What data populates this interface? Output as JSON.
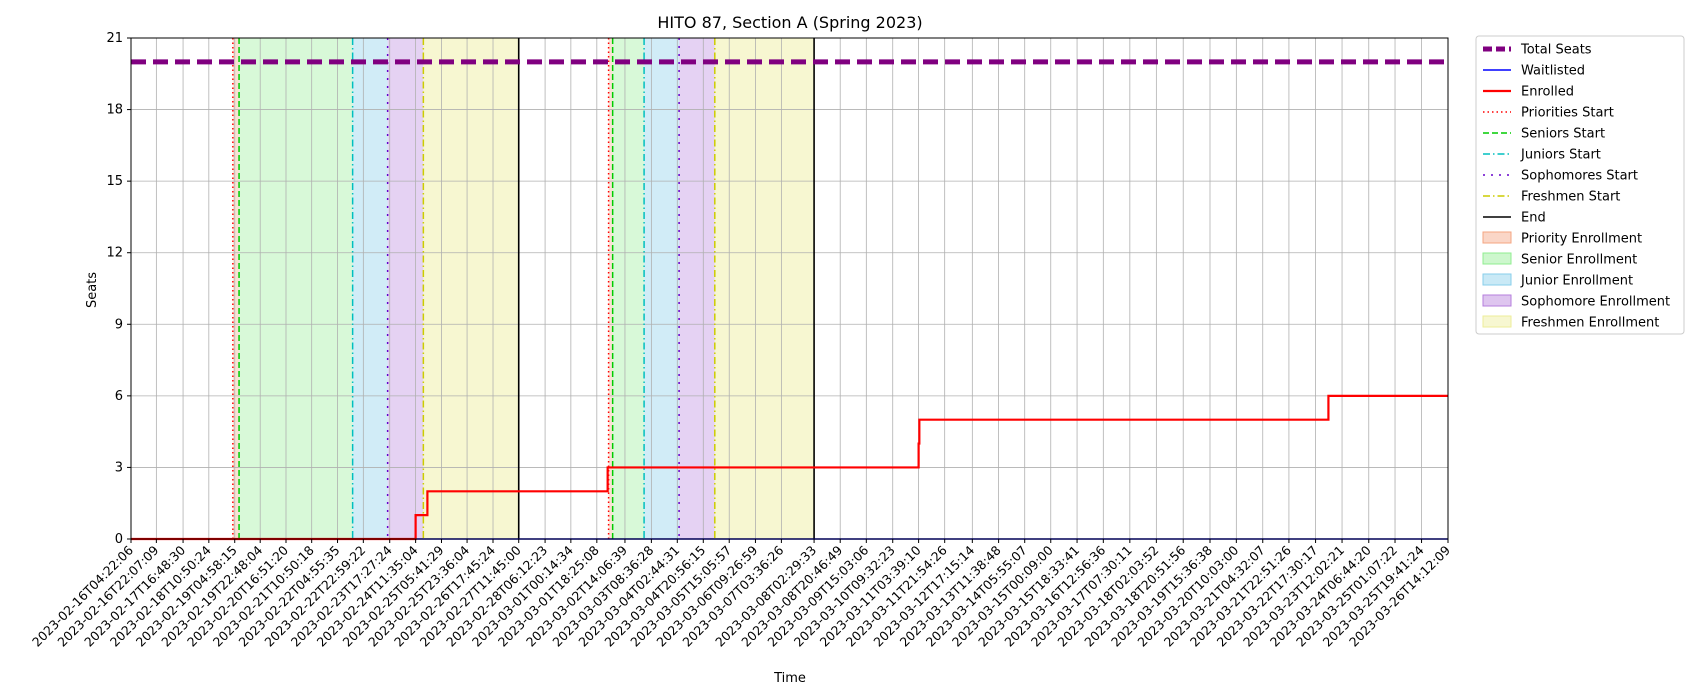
{
  "chart_data": {
    "type": "line",
    "title": "HITO 87, Section A (Spring 2023)",
    "xlabel": "Time",
    "ylabel": "Seats",
    "ylim": [
      0,
      21
    ],
    "yticks": [
      0,
      3,
      6,
      9,
      12,
      15,
      18,
      21
    ],
    "xlim": [
      "2023-02-16T04:22:06",
      "2023-03-26T14:12:09"
    ],
    "xticks": [
      "2023-02-16T04:22:06",
      "2023-02-16T22:07:09",
      "2023-02-17T16:48:30",
      "2023-02-18T10:50:24",
      "2023-02-19T04:58:15",
      "2023-02-19T22:48:04",
      "2023-02-20T16:51:20",
      "2023-02-21T10:50:18",
      "2023-02-22T04:55:35",
      "2023-02-22T22:59:22",
      "2023-02-23T17:27:24",
      "2023-02-24T11:35:04",
      "2023-02-25T05:41:29",
      "2023-02-25T23:36:04",
      "2023-02-26T17:45:24",
      "2023-02-27T11:45:00",
      "2023-02-28T06:12:23",
      "2023-03-01T00:14:34",
      "2023-03-01T18:25:08",
      "2023-03-02T14:06:39",
      "2023-03-03T08:36:28",
      "2023-03-04T02:44:31",
      "2023-03-04T20:56:15",
      "2023-03-05T15:05:57",
      "2023-03-06T09:26:59",
      "2023-03-07T03:36:26",
      "2023-03-08T02:29:33",
      "2023-03-08T20:46:49",
      "2023-03-09T15:03:06",
      "2023-03-10T09:32:23",
      "2023-03-11T03:39:10",
      "2023-03-11T21:54:26",
      "2023-03-12T17:15:14",
      "2023-03-13T11:38:48",
      "2023-03-14T05:55:07",
      "2023-03-15T00:09:00",
      "2023-03-15T18:33:41",
      "2023-03-16T12:56:36",
      "2023-03-17T07:30:11",
      "2023-03-18T02:03:52",
      "2023-03-18T20:51:56",
      "2023-03-19T15:36:38",
      "2023-03-20T10:03:00",
      "2023-03-21T04:32:07",
      "2023-03-21T22:51:26",
      "2023-03-22T17:30:17",
      "2023-03-23T12:02:21",
      "2023-03-24T06:44:20",
      "2023-03-25T01:07:22",
      "2023-03-25T19:41:24",
      "2023-03-26T14:12:09"
    ],
    "grid": true,
    "legend_position": "outside-right",
    "series": [
      {
        "name": "Total Seats",
        "color": "#800080",
        "style": "dashed-thick",
        "points": [
          [
            "2023-02-16T04:22:06",
            20
          ],
          [
            "2023-03-26T14:12:09",
            20
          ]
        ]
      },
      {
        "name": "Waitlisted",
        "color": "#0000ff",
        "style": "solid",
        "points": [
          [
            "2023-02-16T04:22:06",
            0
          ],
          [
            "2023-03-26T14:12:09",
            0
          ]
        ]
      },
      {
        "name": "Enrolled",
        "color": "#ff0000",
        "style": "solid-step",
        "points": [
          [
            "2023-02-16T04:22:06",
            0
          ],
          [
            "2023-02-24T11:35:04",
            0
          ],
          [
            "2023-02-24T11:35:04",
            1
          ],
          [
            "2023-02-24T19:50:00",
            1
          ],
          [
            "2023-02-24T19:50:00",
            2
          ],
          [
            "2023-03-02T02:00:00",
            2
          ],
          [
            "2023-03-02T02:00:00",
            3
          ],
          [
            "2023-03-11T03:39:10",
            3
          ],
          [
            "2023-03-11T03:39:10",
            4
          ],
          [
            "2023-03-11T04:10:00",
            4
          ],
          [
            "2023-03-11T04:10:00",
            5
          ],
          [
            "2023-03-23T02:30:00",
            5
          ],
          [
            "2023-03-23T02:30:00",
            6
          ],
          [
            "2023-03-26T14:12:09",
            6
          ]
        ]
      }
    ],
    "vertical_lines": [
      {
        "name": "Priorities Start",
        "color": "#ff0000",
        "style": "dotted",
        "x": [
          "2023-02-19T03:40:00",
          "2023-03-02T02:40:00"
        ]
      },
      {
        "name": "Seniors Start",
        "color": "#00cc00",
        "style": "dashed",
        "x": [
          "2023-02-19T08:00:00",
          "2023-03-02T05:30:00"
        ]
      },
      {
        "name": "Juniors Start",
        "color": "#00bfbf",
        "style": "dashdot",
        "x": [
          "2023-02-22T15:30:00",
          "2023-03-03T03:30:00"
        ]
      },
      {
        "name": "Sophomores Start",
        "color": "#6600cc",
        "style": "dashdotdot",
        "x": [
          "2023-02-23T16:00:00",
          "2023-03-04T04:00:00"
        ]
      },
      {
        "name": "Freshmen Start",
        "color": "#cccc00",
        "style": "dashdot",
        "x": [
          "2023-02-24T17:00:00",
          "2023-03-05T05:00:00"
        ]
      },
      {
        "name": "End",
        "color": "#000000",
        "style": "solid",
        "x": [
          "2023-02-27T11:45:00",
          "2023-03-08T02:29:33"
        ]
      }
    ],
    "shaded_regions": [
      {
        "name": "Priority Enrollment",
        "color": "#f4a582",
        "alpha": 0.35,
        "ranges": [
          [
            "2023-02-19T03:40:00",
            "2023-02-19T08:00:00"
          ],
          [
            "2023-03-02T02:40:00",
            "2023-03-02T05:30:00"
          ]
        ]
      },
      {
        "name": "Senior Enrollment",
        "color": "#90ee90",
        "alpha": 0.35,
        "ranges": [
          [
            "2023-02-19T08:00:00",
            "2023-02-22T15:30:00"
          ],
          [
            "2023-03-02T05:30:00",
            "2023-03-03T03:30:00"
          ]
        ]
      },
      {
        "name": "Junior Enrollment",
        "color": "#87ceeb",
        "alpha": 0.38,
        "ranges": [
          [
            "2023-02-22T15:30:00",
            "2023-02-23T16:00:00"
          ],
          [
            "2023-03-03T03:30:00",
            "2023-03-04T04:00:00"
          ]
        ]
      },
      {
        "name": "Sophomore Enrollment",
        "color": "#b57edc",
        "alpha": 0.35,
        "ranges": [
          [
            "2023-02-23T16:00:00",
            "2023-02-24T17:00:00"
          ],
          [
            "2023-03-04T04:00:00",
            "2023-03-05T05:00:00"
          ]
        ]
      },
      {
        "name": "Freshmen Enrollment",
        "color": "#eeee99",
        "alpha": 0.45,
        "ranges": [
          [
            "2023-02-24T17:00:00",
            "2023-02-27T11:45:00"
          ],
          [
            "2023-03-05T05:00:00",
            "2023-03-08T02:29:33"
          ]
        ]
      }
    ],
    "legend": [
      {
        "label": "Total Seats",
        "kind": "line",
        "color": "#800080",
        "style": "dashed-thick"
      },
      {
        "label": "Waitlisted",
        "kind": "line",
        "color": "#0000ff",
        "style": "solid"
      },
      {
        "label": "Enrolled",
        "kind": "line",
        "color": "#ff0000",
        "style": "solid-thick"
      },
      {
        "label": "Priorities Start",
        "kind": "line",
        "color": "#ff0000",
        "style": "dotted"
      },
      {
        "label": "Seniors Start",
        "kind": "line",
        "color": "#00cc00",
        "style": "dashed"
      },
      {
        "label": "Juniors Start",
        "kind": "line",
        "color": "#00bfbf",
        "style": "dashdot"
      },
      {
        "label": "Sophomores Start",
        "kind": "line",
        "color": "#6600cc",
        "style": "dashdotdot"
      },
      {
        "label": "Freshmen Start",
        "kind": "line",
        "color": "#cccc00",
        "style": "dashdot"
      },
      {
        "label": "End",
        "kind": "line",
        "color": "#000000",
        "style": "solid"
      },
      {
        "label": "Priority Enrollment",
        "kind": "patch",
        "color": "#f4a582"
      },
      {
        "label": "Senior Enrollment",
        "kind": "patch",
        "color": "#90ee90"
      },
      {
        "label": "Junior Enrollment",
        "kind": "patch",
        "color": "#87ceeb"
      },
      {
        "label": "Sophomore Enrollment",
        "kind": "patch",
        "color": "#b57edc"
      },
      {
        "label": "Freshmen Enrollment",
        "kind": "patch",
        "color": "#eeee99"
      }
    ]
  }
}
